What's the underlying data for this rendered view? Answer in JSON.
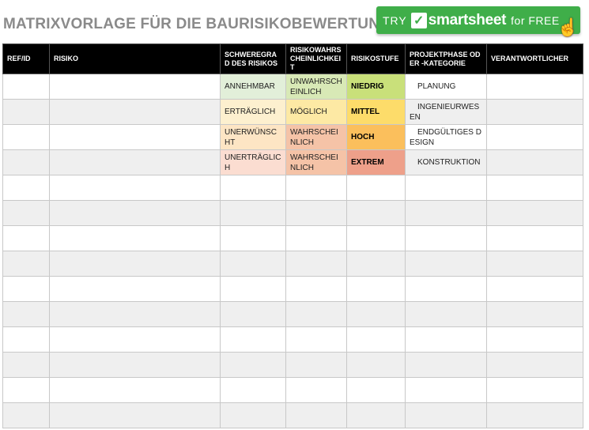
{
  "title": "MATRIXVORLAGE FÜR DIE BAURISIKOBEWERTUNG",
  "banner": {
    "try": "TRY",
    "brand": "smartsheet",
    "free": "for FREE",
    "accent": "#3fae49"
  },
  "headers": [
    "REF/ID",
    "RISIKO",
    "SCHWEREGRAD DES RISIKOS",
    "RISIKOWAHRSCHEINLICHKEIT",
    "RISIKOSTUFE",
    "PROJEKTPHASE ODER -KATEGORIE",
    "VERANTWORTLICHER"
  ],
  "rows": [
    {
      "ref": "",
      "risk": "",
      "severity": "ANNEHMBAR",
      "severity_color": "#e2efd9",
      "probability": "UNWAHRSCHEINLICH",
      "probability_color": "#d8e9b6",
      "level": "NIEDRIG",
      "level_color": "#c9e07a",
      "phase": "PLANUNG",
      "owner": ""
    },
    {
      "ref": "",
      "risk": "",
      "severity": "ERTRÄGLICH",
      "severity_color": "#fdf0cf",
      "probability": "MÖGLICH",
      "probability_color": "#fde9a4",
      "level": "MITTEL",
      "level_color": "#fddc6a",
      "phase": "INGENIEURWESEN",
      "owner": ""
    },
    {
      "ref": "",
      "risk": "",
      "severity": "UNERWÜNSCHT",
      "severity_color": "#fde5c4",
      "probability": "WAHRSCHEINLICH",
      "probability_color": "#f5c3a7",
      "level": "HOCH",
      "level_color": "#fbbf5c",
      "phase": "ENDGÜLTIGES DESIGN",
      "owner": ""
    },
    {
      "ref": "",
      "risk": "",
      "severity": "UNERTRÄGLICH",
      "severity_color": "#fbddd1",
      "probability": "WAHRSCHEINLICH",
      "probability_color": "#f5c3a7",
      "level": "EXTREM",
      "level_color": "#eea08a",
      "phase": "KONSTRUKTION",
      "owner": ""
    }
  ],
  "empty_row_count": 10
}
